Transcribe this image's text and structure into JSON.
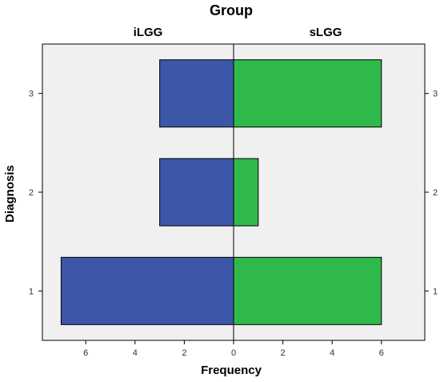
{
  "chart_data": {
    "type": "bar",
    "orientation": "horizontal-butterfly",
    "title": "Group",
    "xlabel": "Frequency",
    "ylabel": "Diagnosis",
    "categories": [
      "1",
      "2",
      "3"
    ],
    "series": [
      {
        "name": "iLGG",
        "values": [
          7,
          3,
          3
        ],
        "color": "#3c56a8",
        "side": "left"
      },
      {
        "name": "sLGG",
        "values": [
          6,
          1,
          6
        ],
        "color": "#2fb94a",
        "side": "right"
      }
    ],
    "xlim": [
      -8,
      8
    ],
    "x_ticks": [
      "6",
      "4",
      "2",
      "0",
      "2",
      "4",
      "6"
    ],
    "x_tick_values": [
      -6,
      -4,
      -2,
      0,
      2,
      4,
      6
    ],
    "ylim": [
      0.5,
      3.5
    ],
    "grid": false,
    "colors": {
      "panel_background": "#f0f0f0",
      "bar_outline": "#000000"
    }
  }
}
